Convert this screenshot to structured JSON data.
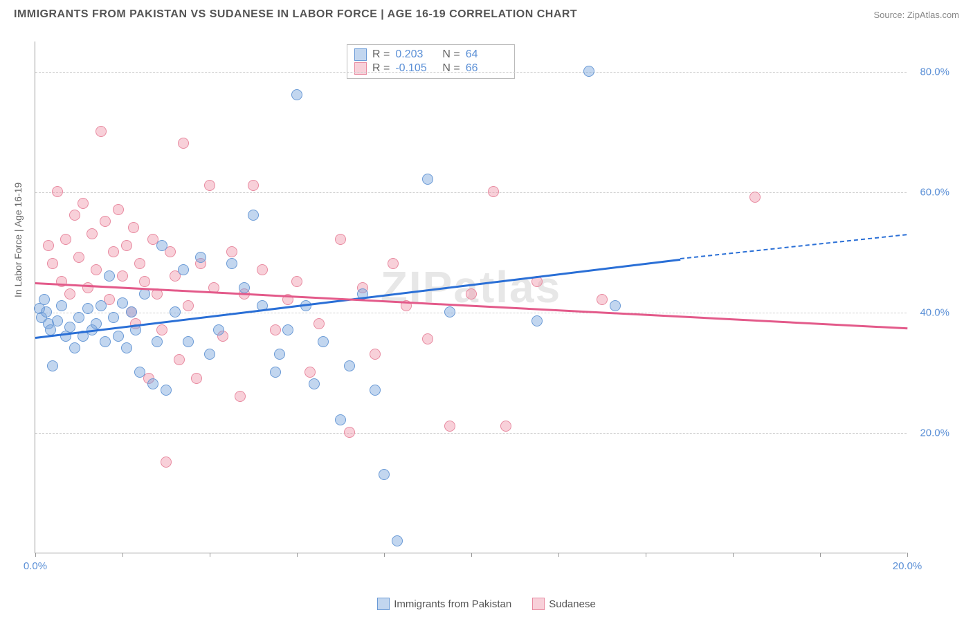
{
  "header": {
    "title": "IMMIGRANTS FROM PAKISTAN VS SUDANESE IN LABOR FORCE | AGE 16-19 CORRELATION CHART",
    "source": "Source: ZipAtlas.com"
  },
  "watermark": "ZIPatlas",
  "chart": {
    "type": "scatter",
    "y_axis_label": "In Labor Force | Age 16-19",
    "xlim": [
      0,
      20
    ],
    "ylim": [
      0,
      85
    ],
    "x_ticks": [
      0,
      2,
      4,
      6,
      8,
      10,
      12,
      14,
      16,
      18,
      20
    ],
    "x_tick_labels": {
      "0": "0.0%",
      "20": "20.0%"
    },
    "y_ticks": [
      20,
      40,
      60,
      80
    ],
    "y_tick_labels": {
      "20": "20.0%",
      "40": "40.0%",
      "60": "60.0%",
      "80": "80.0%"
    },
    "grid_color": "#d0d0d0",
    "background_color": "#ffffff",
    "axis_color": "#999999",
    "tick_label_color": "#5a8fd6",
    "tick_label_fontsize": 15
  },
  "series": {
    "pakistan": {
      "label": "Immigrants from Pakistan",
      "color_fill": "rgba(120,164,220,0.45)",
      "color_stroke": "#6a9ad6",
      "marker_radius": 8,
      "R": "0.203",
      "N": "64",
      "trend": {
        "x1": 0,
        "y1": 36,
        "x2": 14.8,
        "y2": 49,
        "color": "#2a6fd6",
        "dash_x2": 20,
        "dash_y2": 53
      },
      "points": [
        [
          0.1,
          40.5
        ],
        [
          0.15,
          39
        ],
        [
          0.2,
          42
        ],
        [
          0.25,
          40
        ],
        [
          0.3,
          38
        ],
        [
          0.35,
          37
        ],
        [
          0.4,
          31
        ],
        [
          0.5,
          38.5
        ],
        [
          0.6,
          41
        ],
        [
          0.7,
          36
        ],
        [
          0.8,
          37.5
        ],
        [
          0.9,
          34
        ],
        [
          1.0,
          39
        ],
        [
          1.1,
          36
        ],
        [
          1.2,
          40.5
        ],
        [
          1.3,
          37
        ],
        [
          1.4,
          38
        ],
        [
          1.5,
          41
        ],
        [
          1.6,
          35
        ],
        [
          1.7,
          46
        ],
        [
          1.8,
          39
        ],
        [
          1.9,
          36
        ],
        [
          2.0,
          41.5
        ],
        [
          2.1,
          34
        ],
        [
          2.2,
          40
        ],
        [
          2.3,
          37
        ],
        [
          2.4,
          30
        ],
        [
          2.5,
          43
        ],
        [
          2.7,
          28
        ],
        [
          2.8,
          35
        ],
        [
          2.9,
          51
        ],
        [
          3.0,
          27
        ],
        [
          3.2,
          40
        ],
        [
          3.4,
          47
        ],
        [
          3.5,
          35
        ],
        [
          3.8,
          49
        ],
        [
          4.0,
          33
        ],
        [
          4.2,
          37
        ],
        [
          4.5,
          48
        ],
        [
          4.8,
          44
        ],
        [
          5.0,
          56
        ],
        [
          5.2,
          41
        ],
        [
          5.5,
          30
        ],
        [
          5.6,
          33
        ],
        [
          5.8,
          37
        ],
        [
          6.0,
          76
        ],
        [
          6.2,
          41
        ],
        [
          6.4,
          28
        ],
        [
          6.6,
          35
        ],
        [
          7.0,
          22
        ],
        [
          7.2,
          31
        ],
        [
          7.5,
          43
        ],
        [
          7.8,
          27
        ],
        [
          8.0,
          13
        ],
        [
          8.3,
          2
        ],
        [
          9.0,
          62
        ],
        [
          9.5,
          40
        ],
        [
          11.5,
          38.5
        ],
        [
          12.7,
          80
        ],
        [
          13.3,
          41
        ]
      ]
    },
    "sudanese": {
      "label": "Sudanese",
      "color_fill": "rgba(240,150,170,0.45)",
      "color_stroke": "#e88aa0",
      "marker_radius": 8,
      "R": "-0.105",
      "N": "66",
      "trend": {
        "x1": 0,
        "y1": 45,
        "x2": 20,
        "y2": 37.5,
        "color": "#e35a8a"
      },
      "points": [
        [
          0.3,
          51
        ],
        [
          0.4,
          48
        ],
        [
          0.5,
          60
        ],
        [
          0.6,
          45
        ],
        [
          0.7,
          52
        ],
        [
          0.8,
          43
        ],
        [
          0.9,
          56
        ],
        [
          1.0,
          49
        ],
        [
          1.1,
          58
        ],
        [
          1.2,
          44
        ],
        [
          1.3,
          53
        ],
        [
          1.4,
          47
        ],
        [
          1.5,
          70
        ],
        [
          1.6,
          55
        ],
        [
          1.7,
          42
        ],
        [
          1.8,
          50
        ],
        [
          1.9,
          57
        ],
        [
          2.0,
          46
        ],
        [
          2.1,
          51
        ],
        [
          2.2,
          40
        ],
        [
          2.25,
          54
        ],
        [
          2.3,
          38
        ],
        [
          2.4,
          48
        ],
        [
          2.5,
          45
        ],
        [
          2.6,
          29
        ],
        [
          2.7,
          52
        ],
        [
          2.8,
          43
        ],
        [
          2.9,
          37
        ],
        [
          3.0,
          15
        ],
        [
          3.1,
          50
        ],
        [
          3.2,
          46
        ],
        [
          3.3,
          32
        ],
        [
          3.4,
          68
        ],
        [
          3.5,
          41
        ],
        [
          3.7,
          29
        ],
        [
          3.8,
          48
        ],
        [
          4.0,
          61
        ],
        [
          4.1,
          44
        ],
        [
          4.3,
          36
        ],
        [
          4.5,
          50
        ],
        [
          4.7,
          26
        ],
        [
          4.8,
          43
        ],
        [
          5.0,
          61
        ],
        [
          5.2,
          47
        ],
        [
          5.5,
          37
        ],
        [
          5.8,
          42
        ],
        [
          6.0,
          45
        ],
        [
          6.3,
          30
        ],
        [
          6.5,
          38
        ],
        [
          7.0,
          52
        ],
        [
          7.2,
          20
        ],
        [
          7.5,
          44
        ],
        [
          7.8,
          33
        ],
        [
          8.2,
          48
        ],
        [
          8.5,
          41
        ],
        [
          9.0,
          35.5
        ],
        [
          9.5,
          21
        ],
        [
          10.0,
          43
        ],
        [
          10.5,
          60
        ],
        [
          10.8,
          21
        ],
        [
          11.5,
          45
        ],
        [
          13.0,
          42
        ],
        [
          16.5,
          59
        ]
      ]
    }
  },
  "legend_bottom": [
    {
      "label": "Immigrants from Pakistan",
      "fill": "rgba(120,164,220,0.45)",
      "stroke": "#6a9ad6"
    },
    {
      "label": "Sudanese",
      "fill": "rgba(240,150,170,0.45)",
      "stroke": "#e88aa0"
    }
  ],
  "stats_legend": {
    "rows": [
      {
        "fill": "rgba(120,164,220,0.45)",
        "stroke": "#6a9ad6",
        "R": "0.203",
        "N": "64"
      },
      {
        "fill": "rgba(240,150,170,0.45)",
        "stroke": "#e88aa0",
        "R": "-0.105",
        "N": "66"
      }
    ],
    "R_label": "R =",
    "N_label": "N ="
  }
}
